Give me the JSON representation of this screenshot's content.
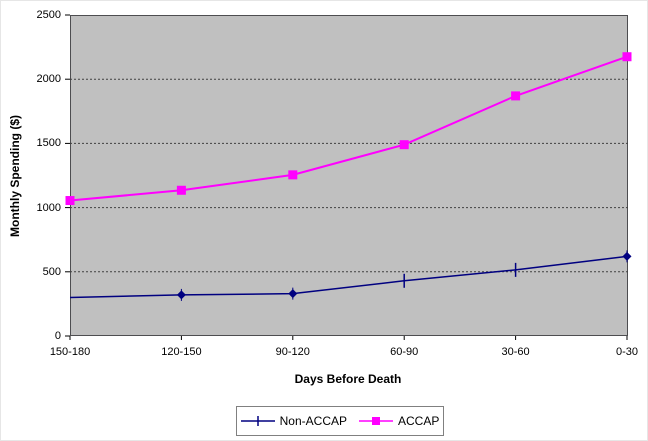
{
  "chart_data": {
    "type": "line",
    "title": "",
    "xlabel": "Days Before Death",
    "ylabel": "Monthly Spending ($)",
    "categories": [
      "150-180",
      "120-150",
      "90-120",
      "60-90",
      "30-60",
      "0-30"
    ],
    "series": [
      {
        "name": "Non-ACCAP",
        "color": "#000080",
        "marker": "diamond-with-error-tick",
        "values": [
          300,
          320,
          330,
          430,
          515,
          620
        ],
        "point_markers": [
          "none",
          "diamond",
          "diamond",
          "tick",
          "tick",
          "diamond"
        ]
      },
      {
        "name": "ACCAP",
        "color": "#ff00ff",
        "marker": "square",
        "values": [
          1055,
          1135,
          1255,
          1490,
          1870,
          2175
        ],
        "point_markers": [
          "square",
          "square",
          "square",
          "square",
          "square",
          "square"
        ]
      }
    ],
    "ylim": [
      0,
      2500
    ],
    "ytick_interval": 500,
    "ytick_labels": [
      "0",
      "500",
      "1000",
      "1500",
      "2000",
      "2500"
    ],
    "grid": "horizontal-dashed",
    "gridline_color": "#404040",
    "plot_background": "#c0c0c0",
    "plot_border_color": "#4d4d50",
    "legend_position": "bottom-center"
  }
}
